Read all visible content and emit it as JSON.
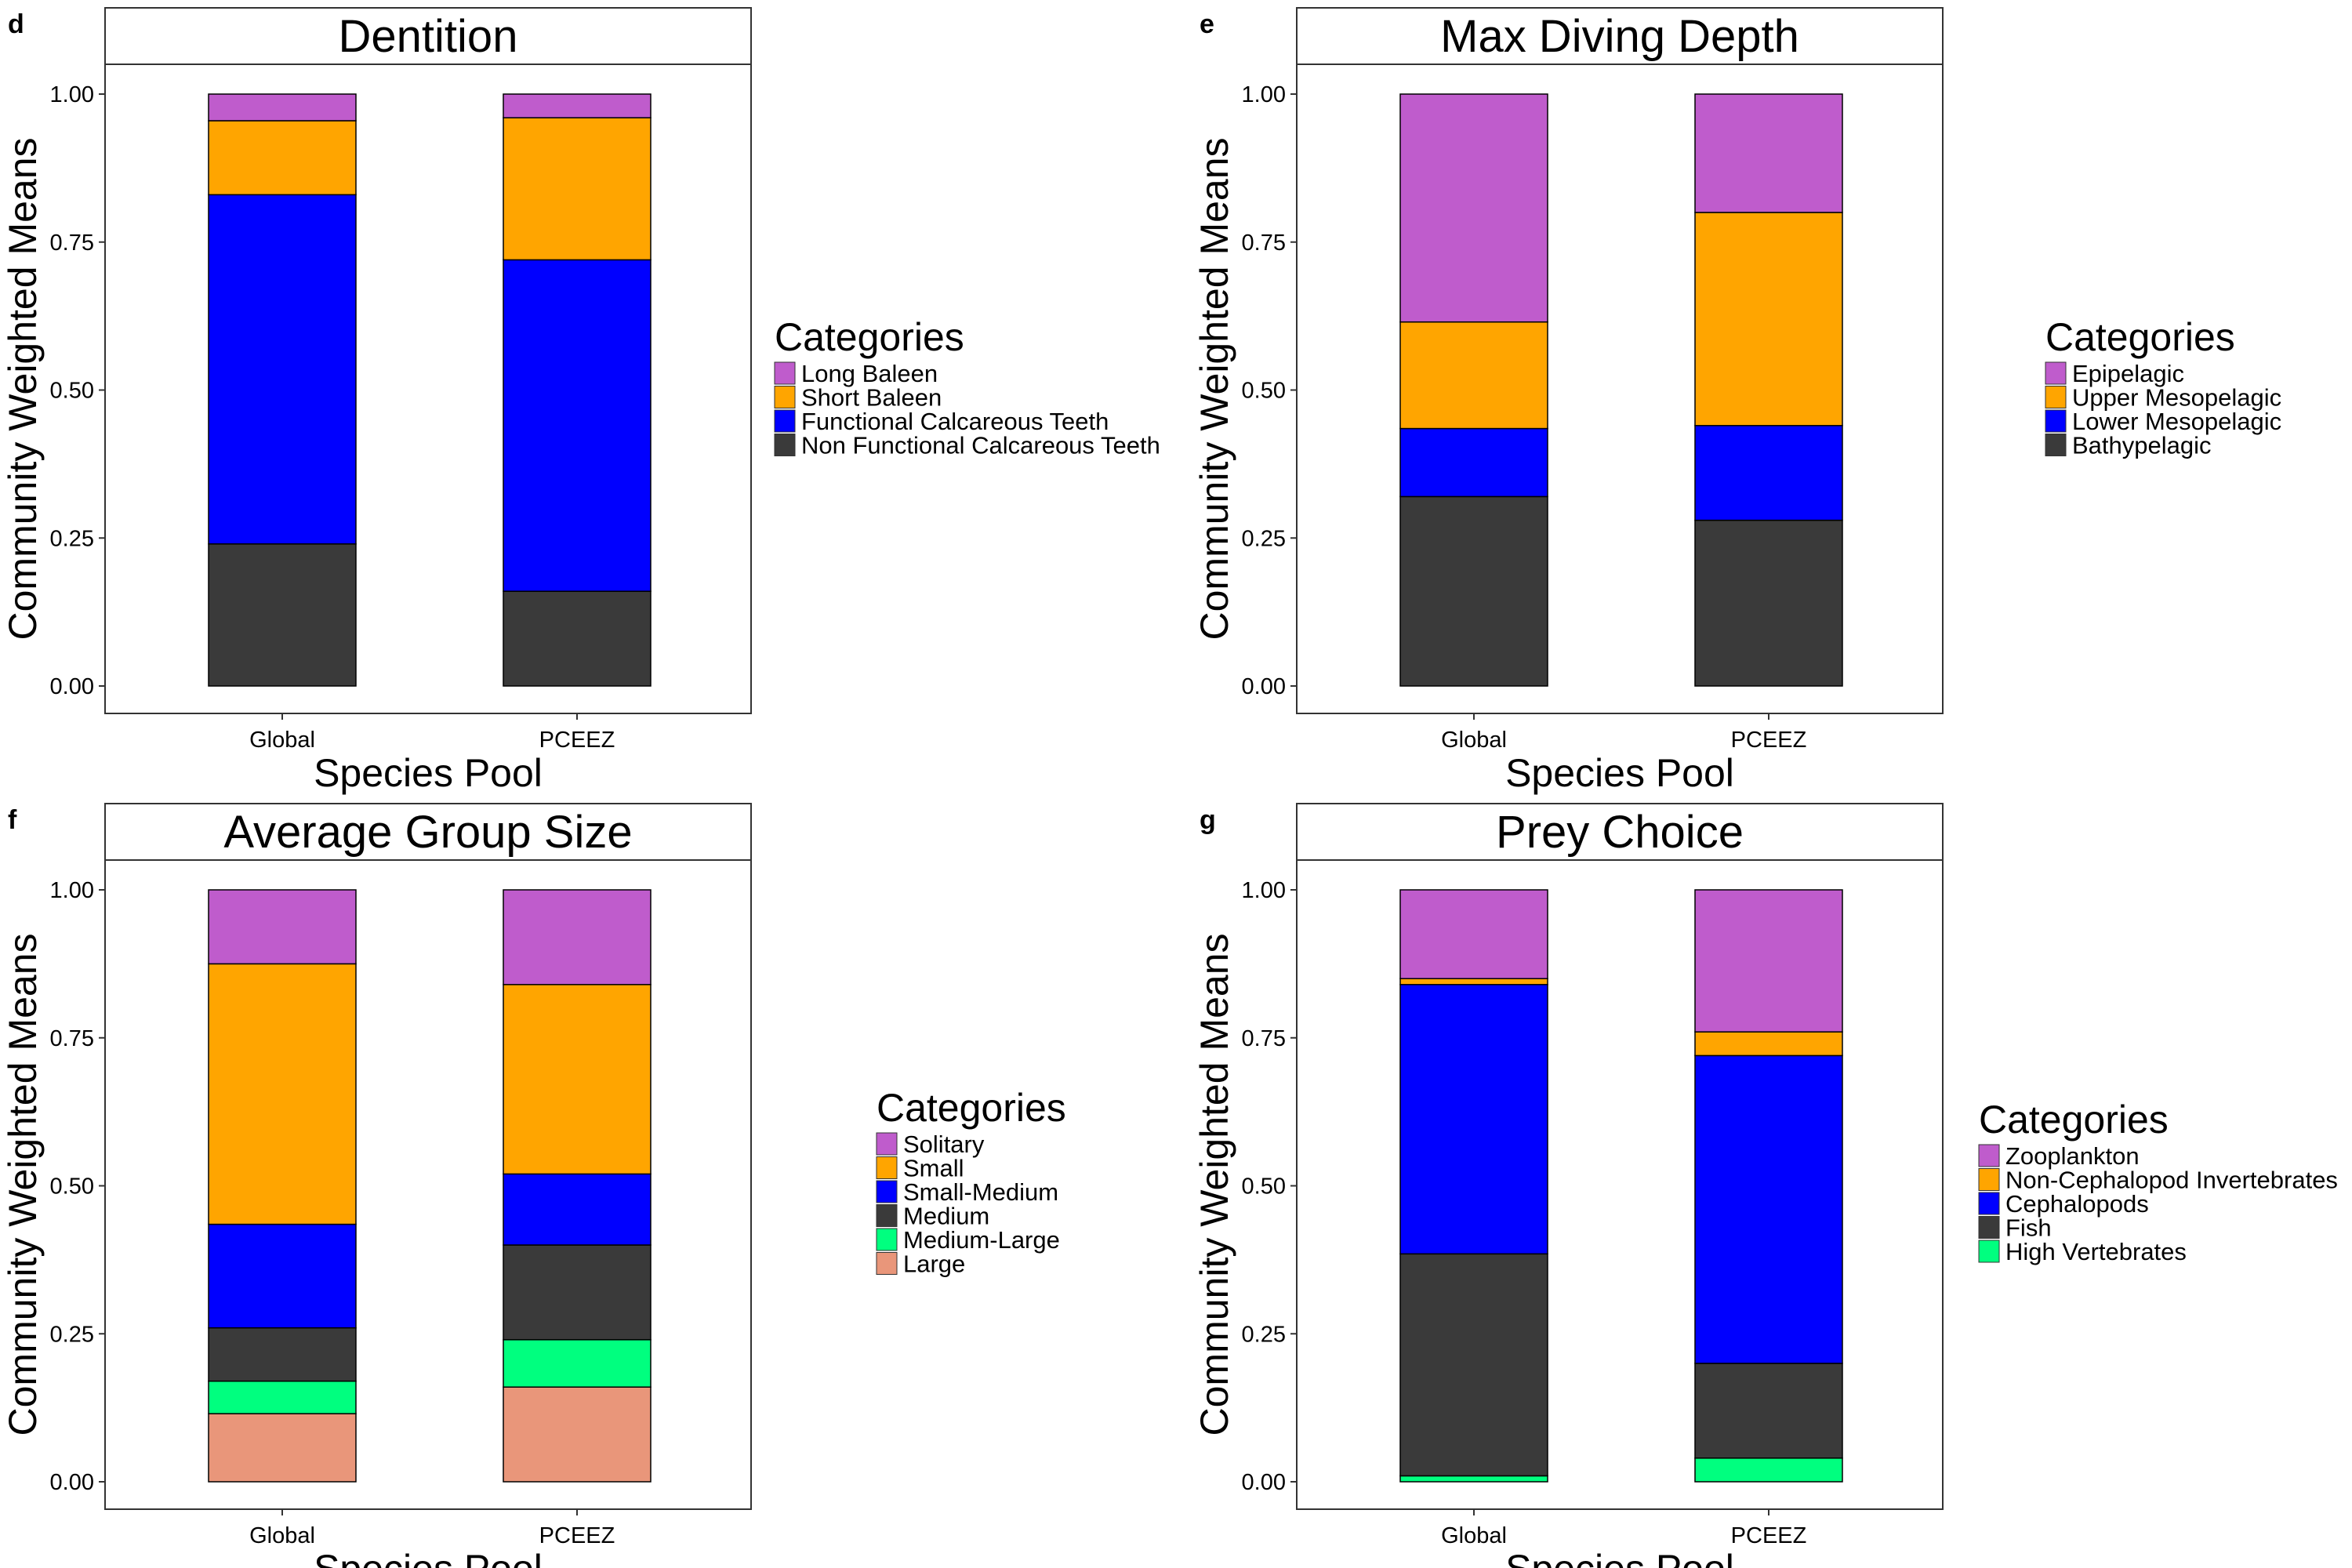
{
  "colors": {
    "purple": "#bf5ccc",
    "orange": "#ffa500",
    "blue": "#0000ff",
    "dark": "#3a3a3a",
    "green": "#00ff7f",
    "salmon": "#e9967a"
  },
  "chart_data": [
    {
      "panel": "d",
      "type": "bar",
      "stacked": true,
      "title": "Dentition",
      "xlabel": "Species Pool",
      "ylabel": "Community Weighted Means",
      "categories": [
        "Global",
        "PCEEZ"
      ],
      "ylim": [
        0,
        1
      ],
      "yticks": [
        "0.00",
        "0.25",
        "0.50",
        "0.75",
        "1.00"
      ],
      "legend_title": "Categories",
      "legend_placement": "right",
      "series": [
        {
          "name": "Long Baleen",
          "color": "#bf5ccc",
          "values": [
            0.045,
            0.04
          ]
        },
        {
          "name": "Short Baleen",
          "color": "#ffa500",
          "values": [
            0.125,
            0.24
          ]
        },
        {
          "name": "Functional Calcareous Teeth",
          "color": "#0000ff",
          "values": [
            0.59,
            0.56
          ]
        },
        {
          "name": "Non Functional Calcareous Teeth",
          "color": "#3a3a3a",
          "values": [
            0.24,
            0.16
          ]
        }
      ]
    },
    {
      "panel": "e",
      "type": "bar",
      "stacked": true,
      "title": "Max Diving Depth",
      "xlabel": "Species Pool",
      "ylabel": "Community Weighted Means",
      "categories": [
        "Global",
        "PCEEZ"
      ],
      "ylim": [
        0,
        1
      ],
      "yticks": [
        "0.00",
        "0.25",
        "0.50",
        "0.75",
        "1.00"
      ],
      "legend_title": "Categories",
      "legend_placement": "right",
      "series": [
        {
          "name": "Epipelagic",
          "color": "#bf5ccc",
          "values": [
            0.385,
            0.2
          ]
        },
        {
          "name": "Upper Mesopelagic",
          "color": "#ffa500",
          "values": [
            0.18,
            0.36
          ]
        },
        {
          "name": "Lower Mesopelagic",
          "color": "#0000ff",
          "values": [
            0.115,
            0.16
          ]
        },
        {
          "name": "Bathypelagic",
          "color": "#3a3a3a",
          "values": [
            0.32,
            0.28
          ]
        }
      ]
    },
    {
      "panel": "f",
      "type": "bar",
      "stacked": true,
      "title": "Average Group Size",
      "xlabel": "Species Pool",
      "ylabel": "Community Weighted Means",
      "categories": [
        "Global",
        "PCEEZ"
      ],
      "ylim": [
        0,
        1
      ],
      "yticks": [
        "0.00",
        "0.25",
        "0.50",
        "0.75",
        "1.00"
      ],
      "legend_title": "Categories",
      "legend_placement": "right",
      "series": [
        {
          "name": "Solitary",
          "color": "#bf5ccc",
          "values": [
            0.125,
            0.16
          ]
        },
        {
          "name": "Small",
          "color": "#ffa500",
          "values": [
            0.44,
            0.32
          ]
        },
        {
          "name": "Small-Medium",
          "color": "#0000ff",
          "values": [
            0.175,
            0.12
          ]
        },
        {
          "name": "Medium",
          "color": "#3a3a3a",
          "values": [
            0.09,
            0.16
          ]
        },
        {
          "name": "Medium-Large",
          "color": "#00ff7f",
          "values": [
            0.055,
            0.08
          ]
        },
        {
          "name": "Large",
          "color": "#e9967a",
          "values": [
            0.115,
            0.16
          ]
        }
      ]
    },
    {
      "panel": "g",
      "type": "bar",
      "stacked": true,
      "title": "Prey Choice",
      "xlabel": "Species Pool",
      "ylabel": "Community Weighted Means",
      "categories": [
        "Global",
        "PCEEZ"
      ],
      "ylim": [
        0,
        1
      ],
      "yticks": [
        "0.00",
        "0.25",
        "0.50",
        "0.75",
        "1.00"
      ],
      "legend_title": "Categories",
      "legend_placement": "right",
      "series": [
        {
          "name": "Zooplankton",
          "color": "#bf5ccc",
          "values": [
            0.15,
            0.24
          ]
        },
        {
          "name": "Non-Cephalopod Invertebrates",
          "color": "#ffa500",
          "values": [
            0.01,
            0.04
          ]
        },
        {
          "name": "Cephalopods",
          "color": "#0000ff",
          "values": [
            0.455,
            0.52
          ]
        },
        {
          "name": "Fish",
          "color": "#3a3a3a",
          "values": [
            0.375,
            0.16
          ]
        },
        {
          "name": "High Vertebrates",
          "color": "#00ff7f",
          "values": [
            0.01,
            0.04
          ]
        }
      ]
    }
  ]
}
